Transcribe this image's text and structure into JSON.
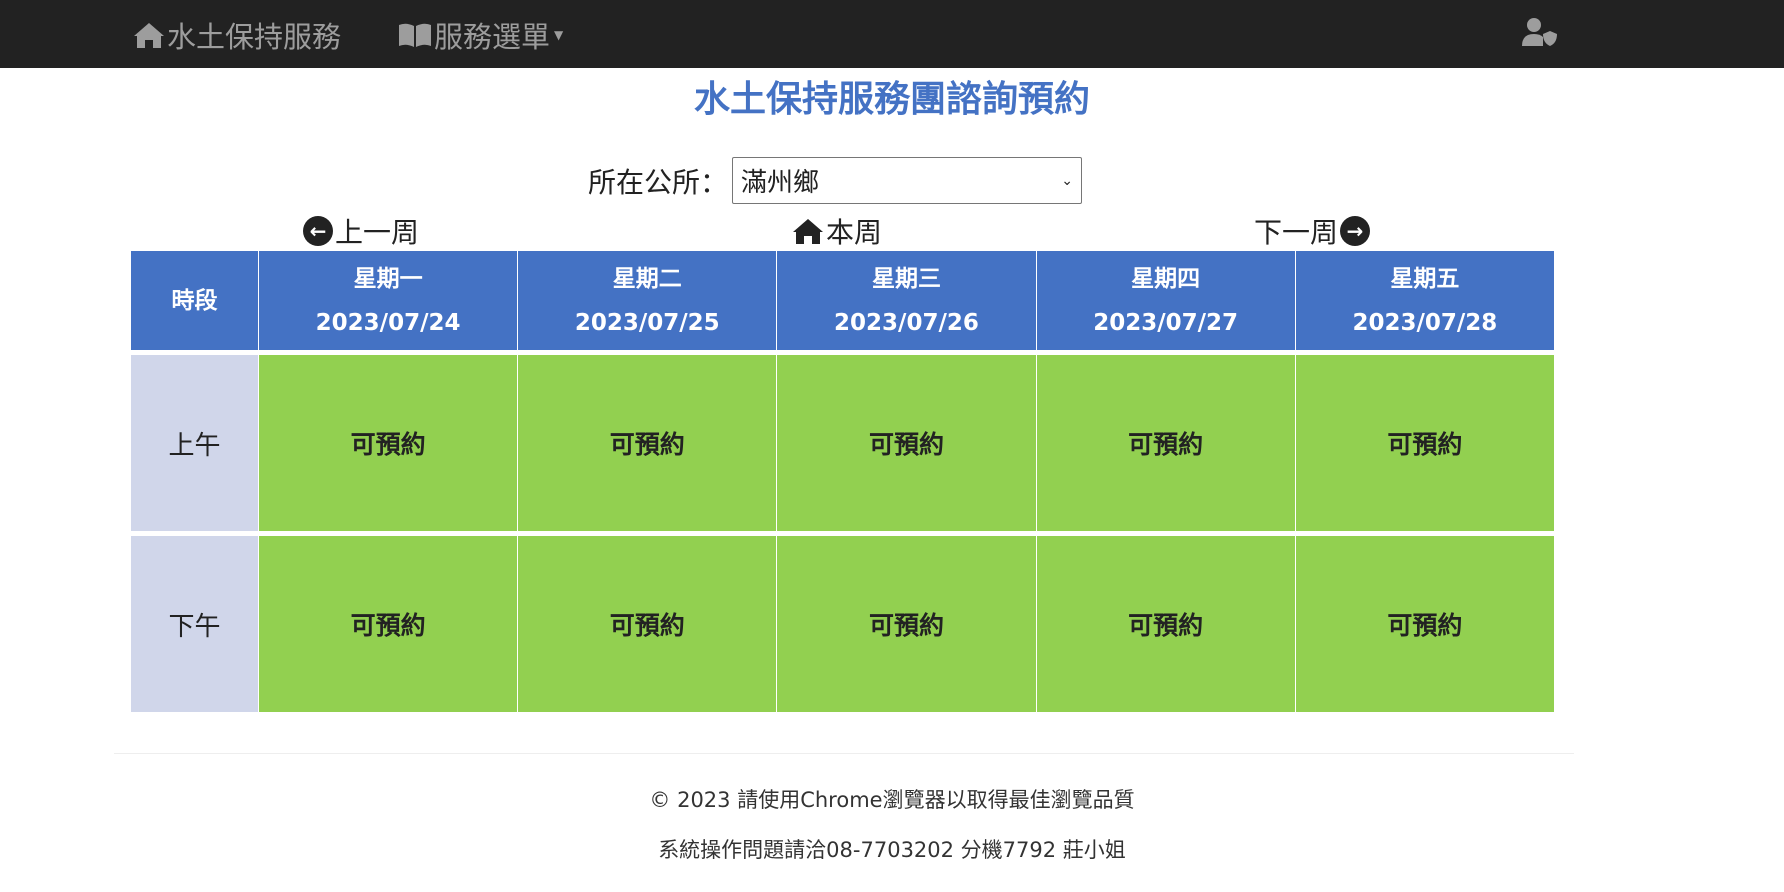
{
  "navbar": {
    "brand": "水土保持服務",
    "menu": "服務選單",
    "brand_icon": "home-icon",
    "menu_icon": "book-icon",
    "user_icon": "user-shield-icon"
  },
  "page": {
    "title": "水土保持服務團諮詢預約"
  },
  "office": {
    "label": "所在公所：",
    "selected": "滿州鄉"
  },
  "week_nav": {
    "prev": "上一周",
    "current": "本周",
    "next": "下一周"
  },
  "table": {
    "slot_header": "時段",
    "days": [
      {
        "weekday": "星期一",
        "date": "2023/07/24"
      },
      {
        "weekday": "星期二",
        "date": "2023/07/25"
      },
      {
        "weekday": "星期三",
        "date": "2023/07/26"
      },
      {
        "weekday": "星期四",
        "date": "2023/07/27"
      },
      {
        "weekday": "星期五",
        "date": "2023/07/28"
      }
    ],
    "rows": [
      {
        "slot": "上午",
        "cells": [
          "可預約",
          "可預約",
          "可預約",
          "可預約",
          "可預約"
        ]
      },
      {
        "slot": "下午",
        "cells": [
          "可預約",
          "可預約",
          "可預約",
          "可預約",
          "可預約"
        ]
      }
    ],
    "colors": {
      "header": "#4472c4",
      "available": "#92d050",
      "slot": "#d0d6ea"
    }
  },
  "footer": {
    "copyright": "© 2023 請使用Chrome瀏覽器以取得最佳瀏覽品質",
    "contact": "系統操作問題請洽08-7703202 分機7792 莊小姐"
  }
}
